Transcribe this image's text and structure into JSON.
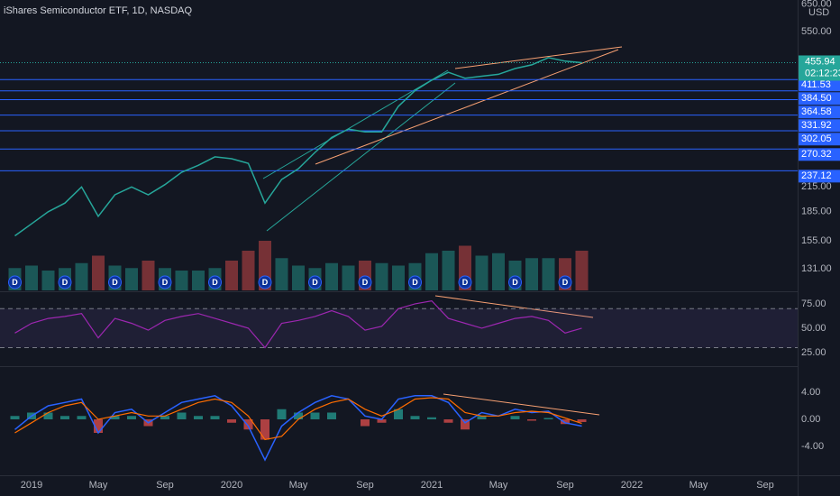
{
  "chart_data": {
    "type": "line",
    "title": "iShares Semiconductor ETF, 1D, NASDAQ",
    "x": [
      "2018-12",
      "2019-01",
      "2019-02",
      "2019-03",
      "2019-04",
      "2019-05",
      "2019-06",
      "2019-07",
      "2019-08",
      "2019-09",
      "2019-10",
      "2019-11",
      "2019-12",
      "2020-01",
      "2020-02",
      "2020-03",
      "2020-04",
      "2020-05",
      "2020-06",
      "2020-07",
      "2020-08",
      "2020-09",
      "2020-10",
      "2020-11",
      "2020-12",
      "2021-01",
      "2021-02",
      "2021-03",
      "2021-04",
      "2021-05",
      "2021-06",
      "2021-07",
      "2021-08",
      "2021-09",
      "2021-10"
    ],
    "xticks": [
      {
        "value": "2019-01",
        "label": "2019"
      },
      {
        "value": "2019-05",
        "label": "May"
      },
      {
        "value": "2019-09",
        "label": "Sep"
      },
      {
        "value": "2020-01",
        "label": "2020"
      },
      {
        "value": "2020-05",
        "label": "May"
      },
      {
        "value": "2020-09",
        "label": "Sep"
      },
      {
        "value": "2021-01",
        "label": "2021"
      },
      {
        "value": "2021-05",
        "label": "May"
      },
      {
        "value": "2021-09",
        "label": "Sep"
      },
      {
        "value": "2022-01",
        "label": "2022"
      },
      {
        "value": "2022-05",
        "label": "May"
      },
      {
        "value": "2022-09",
        "label": "Sep"
      }
    ],
    "price": {
      "values": [
        160,
        172,
        185,
        195,
        215,
        180,
        205,
        215,
        205,
        218,
        235,
        245,
        258,
        255,
        248,
        195,
        225,
        240,
        265,
        290,
        305,
        300,
        300,
        350,
        385,
        410,
        430,
        415,
        420,
        425,
        440,
        450,
        470,
        460,
        455.94
      ],
      "color": "#26a69a",
      "log_scale": true,
      "ylim": [
        115,
        666
      ],
      "yticks": [
        {
          "value": 650,
          "label": "650.00"
        },
        {
          "value": 550,
          "label": "550.00"
        },
        {
          "value": 215,
          "label": "215.00"
        },
        {
          "value": 185,
          "label": "185.00"
        },
        {
          "value": 155,
          "label": "155.00"
        },
        {
          "value": 131,
          "label": "131.00"
        }
      ],
      "currency": "USD",
      "countdown": "02:12:23",
      "levels": [
        411.53,
        {
          "value": 384.5,
          "label": "384.50"
        },
        364.58,
        331.92,
        302.05,
        270.32,
        237.12
      ],
      "level_color": "#2962ff"
    },
    "volume": {
      "values": [
        0.9,
        1.0,
        0.8,
        0.9,
        1.1,
        1.4,
        1.0,
        0.9,
        1.2,
        0.9,
        0.8,
        0.8,
        0.9,
        1.2,
        1.6,
        2.0,
        1.3,
        1.0,
        0.9,
        1.1,
        1.0,
        1.2,
        1.1,
        1.0,
        1.1,
        1.5,
        1.6,
        1.8,
        1.4,
        1.5,
        1.2,
        1.3,
        1.3,
        1.3,
        1.6
      ],
      "up_color": "#26a69a",
      "down_color": "#ef5350"
    },
    "dividends": {
      "label": "D",
      "x": [
        "2018-12",
        "2019-03",
        "2019-06",
        "2019-09",
        "2019-12",
        "2020-03",
        "2020-06",
        "2020-09",
        "2020-12",
        "2021-03",
        "2021-06",
        "2021-09"
      ]
    },
    "rsi": {
      "values": [
        45,
        55,
        60,
        62,
        65,
        40,
        60,
        55,
        48,
        58,
        62,
        65,
        60,
        55,
        50,
        30,
        55,
        58,
        62,
        68,
        62,
        48,
        52,
        70,
        75,
        78,
        60,
        55,
        50,
        55,
        60,
        62,
        58,
        45,
        50
      ],
      "color": "#9c27b0",
      "ylim": [
        12,
        86
      ],
      "yticks": [
        {
          "value": 75,
          "label": "75.00"
        },
        {
          "value": 50,
          "label": "50.00"
        },
        {
          "value": 25,
          "label": "25.00"
        }
      ],
      "bands": [
        30,
        70
      ]
    },
    "macd": {
      "macd": [
        -1.5,
        0.5,
        2,
        2.5,
        3,
        -2,
        1,
        1.5,
        -0.5,
        1,
        2.5,
        3,
        3.5,
        2,
        -1,
        -6,
        -1,
        1,
        2.5,
        3.5,
        3,
        0.5,
        0,
        3,
        3.5,
        3.5,
        2.5,
        -0.5,
        1,
        0.5,
        1.5,
        1,
        1.2,
        -0.5,
        -1
      ],
      "signal": [
        -2,
        -0.5,
        1,
        2,
        2.5,
        0,
        0.5,
        1,
        0.5,
        0.5,
        1.5,
        2.5,
        3,
        2.5,
        0.5,
        -3,
        -2.5,
        0,
        1.5,
        2.5,
        3,
        1.5,
        0.5,
        1.5,
        3,
        3.2,
        3,
        1,
        0.5,
        0.5,
        1,
        1.2,
        1,
        0.2,
        -0.6
      ],
      "histogram": [
        0.5,
        1,
        1,
        0.5,
        0.5,
        -2,
        0.5,
        0.5,
        -1,
        0.5,
        1,
        0.5,
        0.5,
        -0.5,
        -1.5,
        -3,
        1.5,
        1,
        1,
        1,
        0,
        -1,
        -0.5,
        1.5,
        0.5,
        0.3,
        -0.5,
        -1.5,
        0.5,
        0,
        0.5,
        -0.2,
        0.2,
        -0.7,
        -0.4
      ],
      "ylim": [
        -8,
        7.6
      ],
      "yticks": [
        {
          "value": 4,
          "label": "4.00"
        },
        {
          "value": 0,
          "label": "0.00"
        },
        {
          "value": -4,
          "label": "-4.00"
        }
      ],
      "macd_color": "#2962ff",
      "signal_color": "#ff6d00"
    }
  }
}
